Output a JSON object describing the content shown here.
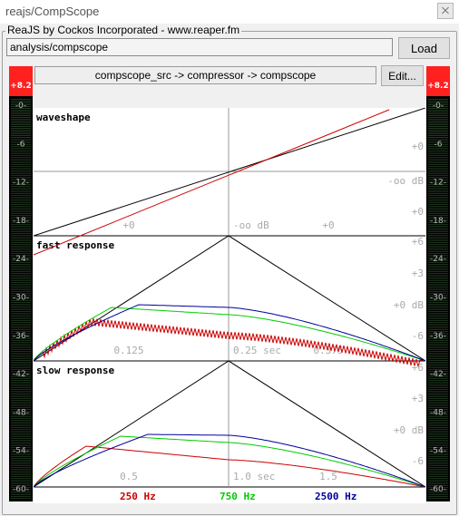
{
  "window": {
    "title": "reajs/CompScope"
  },
  "group": {
    "label": "ReaJS by Cockos Incorporated - www.reaper.fm"
  },
  "effect": {
    "path": "analysis/compscope",
    "load_label": "Load"
  },
  "chain": {
    "text": "compscope_src -> compressor -> compscope",
    "edit_label": "Edit..."
  },
  "meters": {
    "peak_left": "+8.2",
    "peak_right": "+8.2",
    "scale": [
      "-0-",
      "-6",
      "-12-",
      "-18-",
      "-24-",
      "-30-",
      "-36-",
      "-42-",
      "-48-",
      "-54-",
      "-60-"
    ]
  },
  "scope": {
    "panels": [
      {
        "label": "waveshape",
        "x_ticks": [
          "+0",
          "-oo dB",
          "+0"
        ],
        "y_ticks": [
          "+0",
          "-oo dB",
          "+0"
        ]
      },
      {
        "label": "fast response",
        "x_ticks": [
          "0.125",
          "0.25 sec",
          "0.375"
        ],
        "y_ticks": [
          "+6",
          "+3",
          "+0 dB",
          "-6"
        ]
      },
      {
        "label": "slow response",
        "x_ticks": [
          "0.5",
          "1.0 sec",
          "1.5"
        ],
        "y_ticks": [
          "+6",
          "+3",
          "+0 dB",
          "-6"
        ]
      }
    ],
    "legend": [
      {
        "label": "250 Hz",
        "color": "#cc0000"
      },
      {
        "label": "750 Hz",
        "color": "#00cc00"
      },
      {
        "label": "2500 Hz",
        "color": "#000099"
      }
    ]
  }
}
